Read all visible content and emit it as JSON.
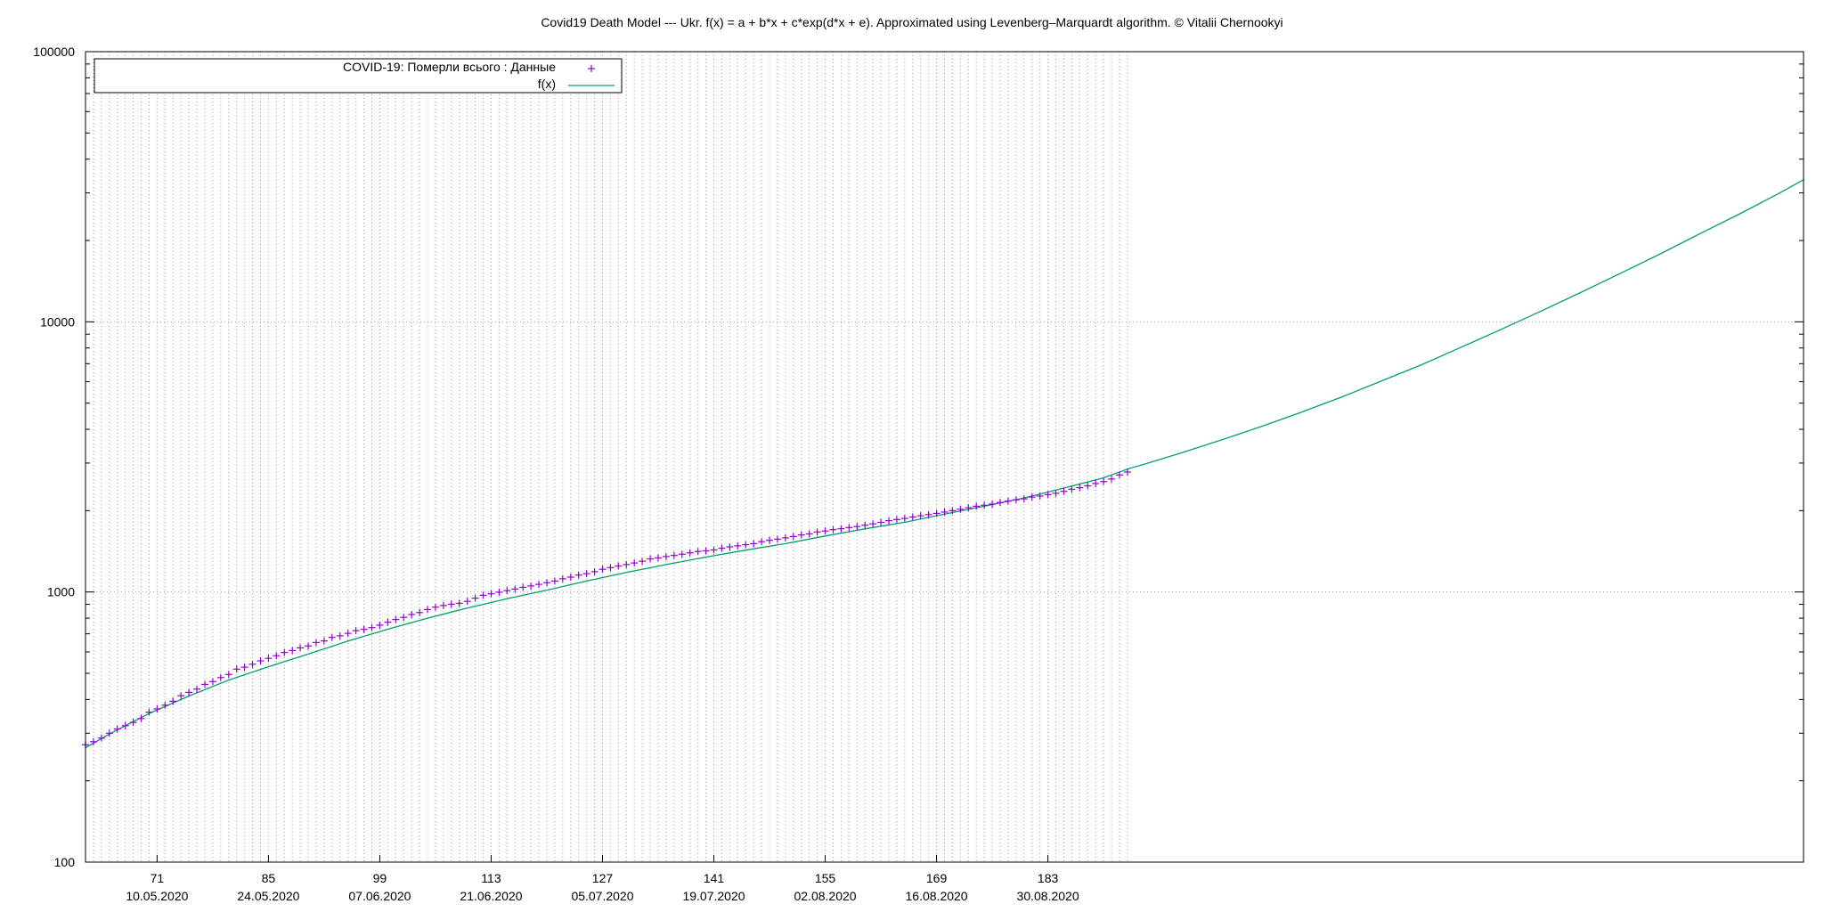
{
  "chart_data": {
    "type": "line",
    "title": "Covid19 Death Model --- Ukr. f(x) = a + b*x + c*exp(d*x + e). Approximated using Levenberg–Marquardt algorithm. © Vitalii Chernookyi",
    "xlabel": "",
    "ylabel": "",
    "x_range": [
      62,
      278
    ],
    "y_range": [
      100,
      100000
    ],
    "y_scale": "log",
    "grid": {
      "x": true,
      "x_extent_until": 193,
      "y": true
    },
    "legend_position": "top-left",
    "x_ticks": [
      {
        "value": 71,
        "label": "71",
        "date": "10.05.2020"
      },
      {
        "value": 85,
        "label": "85",
        "date": "24.05.2020"
      },
      {
        "value": 99,
        "label": "99",
        "date": "07.06.2020"
      },
      {
        "value": 113,
        "label": "113",
        "date": "21.06.2020"
      },
      {
        "value": 127,
        "label": "127",
        "date": "05.07.2020"
      },
      {
        "value": 141,
        "label": "141",
        "date": "19.07.2020"
      },
      {
        "value": 155,
        "label": "155",
        "date": "02.08.2020"
      },
      {
        "value": 169,
        "label": "169",
        "date": "16.08.2020"
      },
      {
        "value": 183,
        "label": "183",
        "date": "30.08.2020"
      }
    ],
    "y_ticks": [
      {
        "value": 100,
        "label": "100"
      },
      {
        "value": 1000,
        "label": "1000"
      },
      {
        "value": 10000,
        "label": "10000"
      },
      {
        "value": 100000,
        "label": "100000"
      }
    ],
    "series": [
      {
        "name": "COVID-19: Померли всього : Данные",
        "kind": "points",
        "marker": "+",
        "color": "#9400d3",
        "x": [
          62,
          63,
          64,
          65,
          66,
          67,
          68,
          69,
          70,
          71,
          72,
          73,
          74,
          75,
          76,
          77,
          78,
          79,
          80,
          81,
          82,
          83,
          84,
          85,
          86,
          87,
          88,
          89,
          90,
          91,
          92,
          93,
          94,
          95,
          96,
          97,
          98,
          99,
          100,
          101,
          102,
          103,
          104,
          105,
          106,
          107,
          108,
          109,
          110,
          111,
          112,
          113,
          114,
          115,
          116,
          117,
          118,
          119,
          120,
          121,
          122,
          123,
          124,
          125,
          126,
          127,
          128,
          129,
          130,
          131,
          132,
          133,
          134,
          135,
          136,
          137,
          138,
          139,
          140,
          141,
          142,
          143,
          144,
          145,
          146,
          147,
          148,
          149,
          150,
          151,
          152,
          153,
          154,
          155,
          156,
          157,
          158,
          159,
          160,
          161,
          162,
          163,
          164,
          165,
          166,
          167,
          168,
          169,
          170,
          171,
          172,
          173,
          174,
          175,
          176,
          177,
          178,
          179,
          180,
          181,
          182,
          183,
          184,
          185,
          186,
          187,
          188,
          189,
          190,
          191,
          192,
          193
        ],
        "y": [
          272,
          279,
          288,
          300,
          311,
          320,
          329,
          340,
          359,
          369,
          381,
          394,
          413,
          425,
          437,
          455,
          466,
          482,
          495,
          518,
          527,
          540,
          556,
          568,
          581,
          597,
          607,
          621,
          631,
          650,
          659,
          679,
          688,
          703,
          719,
          727,
          738,
          754,
          773,
          791,
          805,
          825,
          839,
          861,
          879,
          891,
          901,
          908,
          923,
          949,
          972,
          985,
          998,
          1012,
          1025,
          1041,
          1053,
          1067,
          1082,
          1098,
          1119,
          1135,
          1155,
          1169,
          1189,
          1213,
          1231,
          1248,
          1263,
          1280,
          1300,
          1326,
          1337,
          1352,
          1365,
          1379,
          1396,
          1412,
          1420,
          1430,
          1451,
          1469,
          1481,
          1496,
          1510,
          1535,
          1553,
          1568,
          1586,
          1604,
          1626,
          1640,
          1667,
          1682,
          1701,
          1714,
          1732,
          1746,
          1767,
          1787,
          1810,
          1837,
          1855,
          1871,
          1895,
          1914,
          1933,
          1955,
          1977,
          2001,
          2024,
          2050,
          2077,
          2094,
          2115,
          2144,
          2170,
          2193,
          2212,
          2245,
          2266,
          2292,
          2320,
          2357,
          2401,
          2432,
          2470,
          2520,
          2560,
          2620,
          2710,
          2780
        ]
      },
      {
        "name": "f(x)",
        "kind": "line",
        "color": "#009e73",
        "x": [
          62,
          65,
          70,
          75,
          80,
          85,
          90,
          95,
          100,
          105,
          110,
          115,
          120,
          125,
          130,
          135,
          140,
          145,
          150,
          155,
          160,
          165,
          170,
          175,
          180,
          185,
          190,
          193,
          195,
          200,
          205,
          210,
          215,
          220,
          225,
          230,
          235,
          240,
          245,
          250,
          255,
          260,
          265,
          270,
          275,
          278
        ],
        "y": [
          265,
          298,
          355,
          412,
          472,
          529,
          589,
          658,
          728,
          800,
          872,
          944,
          1016,
          1098,
          1181,
          1263,
          1346,
          1428,
          1510,
          1611,
          1712,
          1812,
          1943,
          2079,
          2228,
          2424,
          2646,
          2850,
          2965,
          3287,
          3670,
          4111,
          4642,
          5274,
          6053,
          6938,
          8063,
          9375,
          10953,
          12839,
          15129,
          17848,
          21201,
          25110,
          29979,
          33560
        ]
      }
    ]
  }
}
